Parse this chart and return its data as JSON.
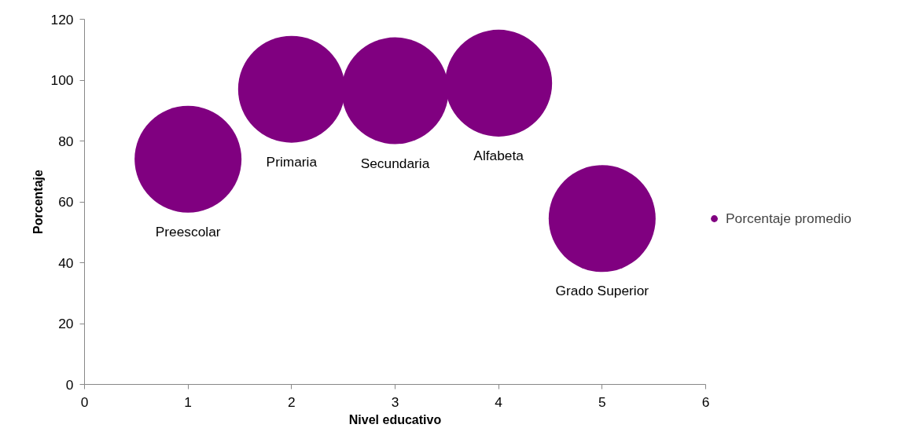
{
  "chart_data": {
    "type": "bubble",
    "xlabel": "Nivel educativo",
    "ylabel": "Porcentaje",
    "x": [
      1,
      2,
      3,
      4,
      5
    ],
    "series": [
      {
        "name": "Porcentaje promedio",
        "color": "#800080",
        "values": [
          74,
          97,
          96.5,
          99,
          54.5
        ],
        "sizes": [
          1,
          1,
          1,
          1,
          1
        ],
        "value_labels": [
          "Preescolar",
          "Primaria",
          "Secundaria",
          "Alfabeta",
          "Grado Superior"
        ]
      }
    ],
    "xlim": [
      0,
      6
    ],
    "xticks": [
      0,
      1,
      2,
      3,
      4,
      5,
      6
    ],
    "ylim": [
      0,
      120
    ],
    "yticks": [
      0,
      20,
      40,
      60,
      80,
      100,
      120
    ],
    "grid": false,
    "legend": "right"
  }
}
